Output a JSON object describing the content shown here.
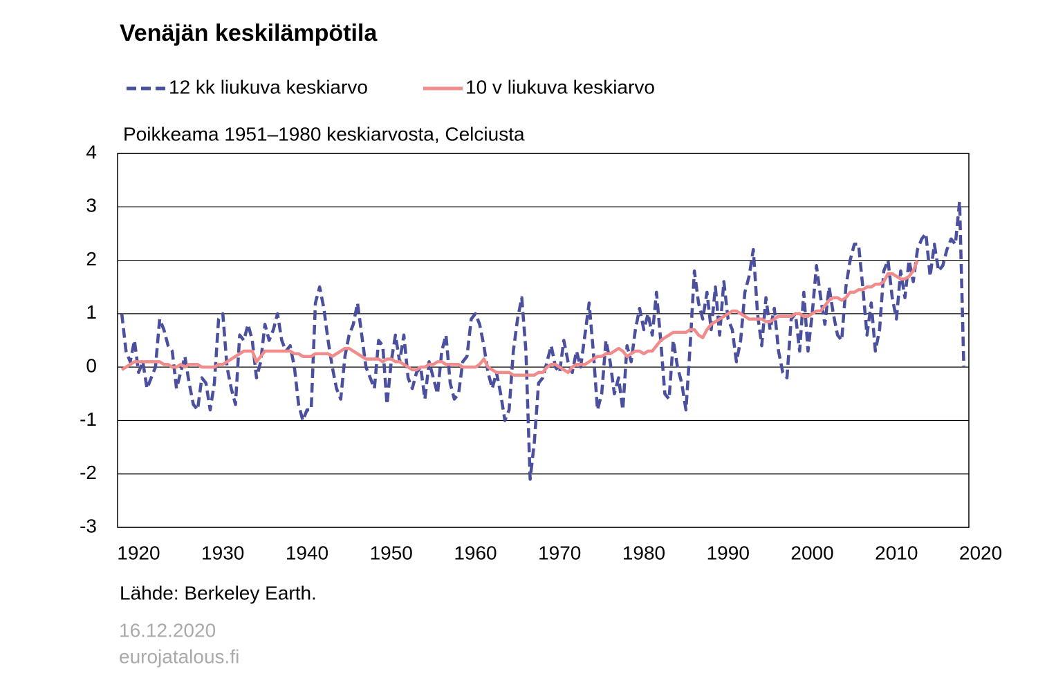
{
  "chart_data": {
    "type": "line",
    "title": "Venäjän keskilämpötila",
    "subtitle": "Poikkeama 1951–1980 keskiarvosta, Celciusta",
    "source": "Lähde: Berkeley Earth.",
    "date": "16.12.2020",
    "site": "eurojatalous.fi",
    "xlim": [
      1917.5,
      2018.6
    ],
    "xticks": [
      1920,
      1930,
      1940,
      1950,
      1960,
      1970,
      1980,
      1990,
      2000,
      2010,
      2020
    ],
    "ylim": [
      -3,
      4
    ],
    "yticks": [
      4,
      3,
      2,
      1,
      0,
      -1,
      -2,
      -3
    ],
    "grid": true,
    "x": [
      1918,
      1918.5,
      1919,
      1919.5,
      1920,
      1920.5,
      1921,
      1921.5,
      1922,
      1922.5,
      1923,
      1923.5,
      1924,
      1924.5,
      1925,
      1925.5,
      1926,
      1926.5,
      1927,
      1927.5,
      1928,
      1928.5,
      1929,
      1929.5,
      1930,
      1930.5,
      1931,
      1931.5,
      1932,
      1932.5,
      1933,
      1933.5,
      1934,
      1934.5,
      1935,
      1935.5,
      1936,
      1936.5,
      1937,
      1937.5,
      1938,
      1938.5,
      1939,
      1939.5,
      1940,
      1940.5,
      1941,
      1941.5,
      1942,
      1942.5,
      1943,
      1943.5,
      1944,
      1944.5,
      1945,
      1945.5,
      1946,
      1946.5,
      1947,
      1947.5,
      1948,
      1948.5,
      1949,
      1949.5,
      1950,
      1950.5,
      1951,
      1951.5,
      1952,
      1952.5,
      1953,
      1953.5,
      1954,
      1954.5,
      1955,
      1955.5,
      1956,
      1956.5,
      1957,
      1957.5,
      1958,
      1958.5,
      1959,
      1959.5,
      1960,
      1960.5,
      1961,
      1961.5,
      1962,
      1962.5,
      1963,
      1963.5,
      1964,
      1964.5,
      1965,
      1965.5,
      1966,
      1966.5,
      1967,
      1967.5,
      1968,
      1968.5,
      1969,
      1969.5,
      1970,
      1970.5,
      1971,
      1971.5,
      1972,
      1972.5,
      1973,
      1973.5,
      1974,
      1974.5,
      1975,
      1975.5,
      1976,
      1976.5,
      1977,
      1977.5,
      1978,
      1978.5,
      1979,
      1979.5,
      1980,
      1980.5,
      1981,
      1981.5,
      1982,
      1982.5,
      1983,
      1983.5,
      1984,
      1984.5,
      1985,
      1985.5,
      1986,
      1986.5,
      1987,
      1987.5,
      1988,
      1988.5,
      1989,
      1989.5,
      1990,
      1990.5,
      1991,
      1991.5,
      1992,
      1992.5,
      1993,
      1993.5,
      1994,
      1994.5,
      1995,
      1995.5,
      1996,
      1996.5,
      1997,
      1997.5,
      1998,
      1998.5,
      1999,
      1999.5,
      2000,
      2000.5,
      2001,
      2001.5,
      2002,
      2002.5,
      2003,
      2003.5,
      2004,
      2004.5,
      2005,
      2005.5,
      2006,
      2006.5,
      2007,
      2007.5,
      2008,
      2008.5,
      2009,
      2009.5,
      2010,
      2010.5,
      2011,
      2011.5,
      2012,
      2012.5,
      2013,
      2013.5,
      2014,
      2014.5,
      2015,
      2015.5,
      2016,
      2016.5,
      2017,
      2017.5,
      2018
    ],
    "series": [
      {
        "name": "12 kk liukuva keskiarvo",
        "color": "#4a4f9e",
        "dashed": true,
        "values": [
          1.0,
          0.3,
          0.1,
          0.5,
          -0.1,
          0.1,
          -0.4,
          -0.2,
          0.0,
          0.9,
          0.7,
          0.4,
          0.3,
          -0.4,
          -0.1,
          0.2,
          -0.3,
          -0.7,
          -0.8,
          -0.2,
          -0.3,
          -0.8,
          -0.3,
          0.9,
          1.0,
          0.0,
          -0.4,
          -0.7,
          0.6,
          0.5,
          0.8,
          0.5,
          -0.2,
          0.1,
          0.8,
          0.5,
          0.7,
          1.0,
          0.5,
          0.3,
          0.4,
          0.0,
          -0.7,
          -1.0,
          -0.8,
          -0.8,
          1.2,
          1.5,
          1.1,
          0.5,
          0.0,
          -0.4,
          -0.6,
          0.2,
          0.6,
          0.8,
          1.2,
          0.6,
          0.0,
          -0.2,
          -0.4,
          0.5,
          0.4,
          -0.7,
          0.1,
          0.6,
          0.1,
          0.6,
          -0.2,
          -0.4,
          -0.1,
          0.0,
          -0.6,
          0.1,
          -0.2,
          -0.5,
          0.3,
          0.6,
          -0.3,
          -0.6,
          -0.5,
          0.1,
          0.2,
          0.9,
          1.0,
          0.8,
          0.4,
          -0.1,
          -0.4,
          -0.1,
          -0.5,
          -1.0,
          -0.8,
          0.3,
          0.9,
          1.3,
          0.3,
          -2.1,
          -1.4,
          -0.3,
          -0.2,
          0.1,
          0.4,
          0.0,
          -0.1,
          0.5,
          0.1,
          -0.1,
          0.3,
          0.0,
          0.6,
          1.2,
          0.3,
          -0.8,
          -0.5,
          0.5,
          0.1,
          -0.5,
          -0.2,
          -0.8,
          0.4,
          0.1,
          0.7,
          1.1,
          0.7,
          1.0,
          0.6,
          1.4,
          0.5,
          -0.5,
          -0.6,
          0.5,
          0.0,
          -0.3,
          -0.8,
          0.4,
          1.8,
          1.2,
          0.9,
          1.4,
          0.7,
          1.5,
          0.6,
          1.6,
          0.9,
          0.7,
          0.1,
          0.5,
          1.4,
          1.7,
          2.2,
          1.0,
          0.4,
          1.3,
          0.7,
          1.1,
          0.3,
          -0.1,
          -0.2,
          0.9,
          1.0,
          0.3,
          1.4,
          0.3,
          1.0,
          1.9,
          1.3,
          0.8,
          1.5,
          1.0,
          0.6,
          0.5,
          1.5,
          2.0,
          2.3,
          2.3,
          1.5,
          0.6,
          1.2,
          0.3,
          0.7,
          1.8,
          2.0,
          1.3,
          0.9,
          1.8,
          1.3,
          2.0,
          1.6,
          2.2,
          2.4,
          2.5,
          1.7,
          2.3,
          1.8,
          1.9,
          2.2,
          2.4,
          2.3,
          3.1,
          0.0
        ]
      },
      {
        "name": "10 v liukuva keskiarvo",
        "color": "#f08c8c",
        "dashed": false,
        "values": [
          -0.05,
          0.0,
          0.05,
          0.1,
          0.1,
          0.1,
          0.1,
          0.1,
          0.1,
          0.1,
          0.05,
          0.05,
          0.0,
          0.0,
          0.05,
          0.0,
          0.05,
          0.05,
          0.05,
          0.0,
          0.0,
          0.0,
          0.0,
          0.05,
          0.05,
          0.1,
          0.15,
          0.2,
          0.25,
          0.3,
          0.3,
          0.3,
          0.1,
          0.2,
          0.3,
          0.3,
          0.3,
          0.3,
          0.3,
          0.3,
          0.3,
          0.25,
          0.25,
          0.2,
          0.2,
          0.2,
          0.25,
          0.25,
          0.25,
          0.25,
          0.2,
          0.25,
          0.3,
          0.35,
          0.35,
          0.3,
          0.25,
          0.2,
          0.15,
          0.15,
          0.15,
          0.15,
          0.1,
          0.15,
          0.15,
          0.1,
          0.1,
          0.05,
          0.0,
          -0.05,
          -0.05,
          0.0,
          0.0,
          0.05,
          0.05,
          0.1,
          0.1,
          0.05,
          0.05,
          0.05,
          0.05,
          0.0,
          0.0,
          0.0,
          0.0,
          0.05,
          0.15,
          0.0,
          -0.05,
          -0.1,
          -0.1,
          -0.1,
          -0.1,
          -0.15,
          -0.15,
          -0.15,
          -0.15,
          -0.15,
          -0.15,
          -0.1,
          -0.1,
          0.0,
          0.05,
          0.05,
          0.0,
          -0.05,
          -0.1,
          0.0,
          0.05,
          0.05,
          0.05,
          0.1,
          0.15,
          0.2,
          0.2,
          0.25,
          0.25,
          0.3,
          0.35,
          0.3,
          0.2,
          0.25,
          0.3,
          0.3,
          0.25,
          0.3,
          0.3,
          0.4,
          0.5,
          0.55,
          0.6,
          0.65,
          0.65,
          0.65,
          0.65,
          0.7,
          0.7,
          0.6,
          0.55,
          0.7,
          0.8,
          0.85,
          0.9,
          0.95,
          1.0,
          1.05,
          1.05,
          1.0,
          0.95,
          0.9,
          0.9,
          0.9,
          0.9,
          0.85,
          0.85,
          0.9,
          0.95,
          0.95,
          0.95,
          0.95,
          1.0,
          1.0,
          0.95,
          0.95,
          1.0,
          1.05,
          1.05,
          1.15,
          1.25,
          1.3,
          1.3,
          1.25,
          1.3,
          1.4,
          1.4,
          1.45,
          1.45,
          1.5,
          1.5,
          1.55,
          1.55,
          1.6,
          1.75,
          1.75,
          1.7,
          1.65,
          1.65,
          1.7,
          1.8,
          2.0,
          null,
          null,
          null,
          null,
          null,
          null,
          null,
          null,
          null,
          null,
          null
        ]
      }
    ]
  }
}
